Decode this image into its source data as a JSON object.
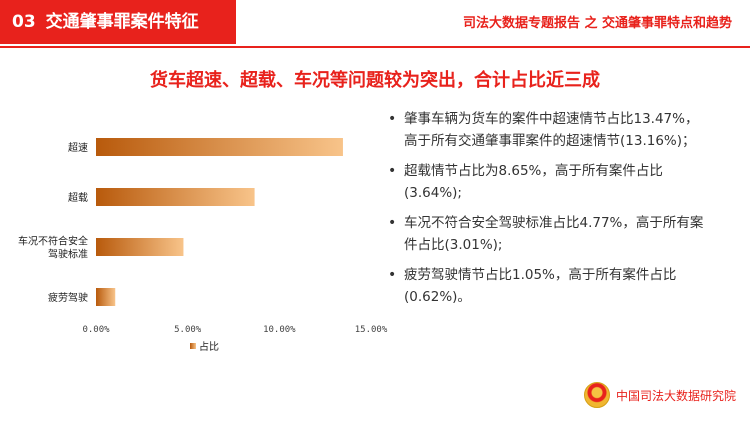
{
  "section": {
    "number": "03",
    "title": "交通肇事罪案件特征"
  },
  "report_title": "司法大数据专题报告 之 交通肇事罪特点和趋势",
  "headline": "货车超速、超载、车况等问题较为突出，合计占比近三成",
  "chart_data": {
    "type": "bar",
    "orientation": "horizontal",
    "categories": [
      "超速",
      "超载",
      "车况不符合安全驾驶标准",
      "疲劳驾驶"
    ],
    "category_lines": [
      [
        "超速"
      ],
      [
        "超载"
      ],
      [
        "车况不符合安全",
        "驾驶标准"
      ],
      [
        "疲劳驾驶"
      ]
    ],
    "series": [
      {
        "name": "占比",
        "values": [
          13.47,
          8.65,
          4.77,
          1.05
        ]
      }
    ],
    "xlim": [
      0,
      15
    ],
    "xticks": [
      0,
      5,
      10,
      15
    ],
    "xtick_labels": [
      "0.00%",
      "5.00%",
      "10.00%",
      "15.00%"
    ],
    "colors": {
      "bar_start": "#b85a0c",
      "bar_end": "#f8c48a"
    },
    "grid": false,
    "legend": "bottom"
  },
  "bullets": [
    "肇事车辆为货车的案件中超速情节占比13.47%，高于所有交通肇事罪案件的超速情节(13.16%)；",
    "超载情节占比为8.65%，高于所有案件占比 (3.64%);",
    "车况不符合安全驾驶标准占比4.77%，高于所有案件占比(3.01%);",
    "疲劳驾驶情节占比1.05%，高于所有案件占比(0.62%)。"
  ],
  "bullet_symbol": "•",
  "logo": {
    "text": "中国司法大数据研究院",
    "icon": "court-emblem-icon"
  }
}
